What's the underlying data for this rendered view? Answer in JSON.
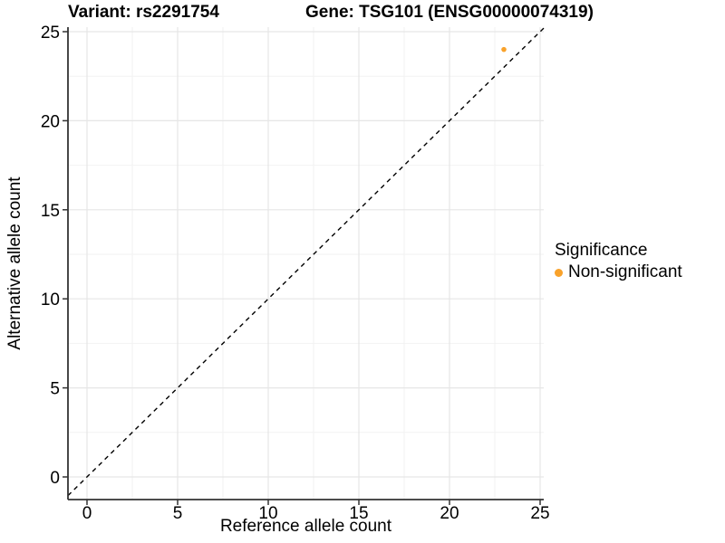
{
  "chart_data": {
    "type": "scatter",
    "title_variant": "Variant: rs2291754",
    "title_gene": "Gene: TSG101 (ENSG00000074319)",
    "xlabel": "Reference allele count",
    "ylabel": "Alternative allele count",
    "xlim": [
      -1.05,
      25.2
    ],
    "ylim": [
      -1.27,
      25.25
    ],
    "x_major_ticks": [
      0,
      5,
      10,
      15,
      20,
      25
    ],
    "y_major_ticks": [
      0,
      5,
      10,
      15,
      20,
      25
    ],
    "x_minor_ticks": [
      2.5,
      7.5,
      12.5,
      17.5,
      22.5
    ],
    "y_minor_ticks": [
      2.5,
      7.5,
      12.5,
      17.5,
      22.5
    ],
    "grid": true,
    "legend_position": "right",
    "identity_line": {
      "slope": 1,
      "intercept": 0,
      "style": "dashed",
      "color": "#000000"
    },
    "points": [
      {
        "x": 23,
        "y": 24,
        "group": "Non-significant",
        "color": "#F9A22B"
      }
    ],
    "legend": {
      "title": "Significance",
      "items": [
        {
          "label": "Non-significant",
          "color": "#F9A22B"
        }
      ]
    }
  },
  "colors": {
    "point_orange": "#F9A22B",
    "grid_major": "#E6E6E6",
    "grid_minor": "#F2F2F2",
    "axis_line": "#333333",
    "tick_mark": "#333333",
    "text": "#000000",
    "background": "#FFFFFF"
  }
}
